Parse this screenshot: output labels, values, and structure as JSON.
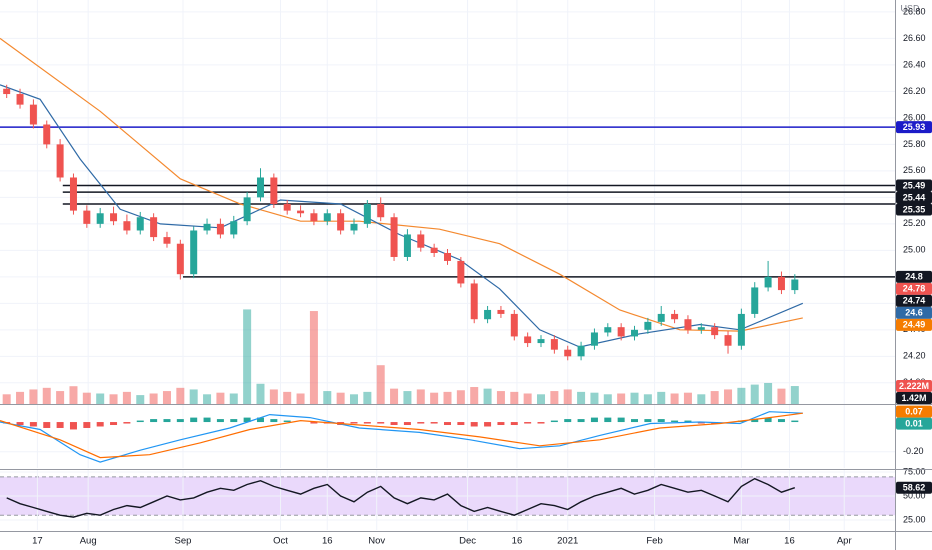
{
  "chart_data": [
    {
      "type": "candlestick",
      "currency": "USD",
      "grid": true,
      "xlim": [
        -0.5,
        66.5
      ],
      "xticks": [
        {
          "value": 2.3,
          "label": "17"
        },
        {
          "value": 6.1,
          "label": "Aug"
        },
        {
          "value": 13.2,
          "label": "Sep"
        },
        {
          "value": 20.5,
          "label": "Oct"
        },
        {
          "value": 24,
          "label": "16"
        },
        {
          "value": 27.7,
          "label": "Nov"
        },
        {
          "value": 34.5,
          "label": "Dec"
        },
        {
          "value": 38.2,
          "label": "16"
        },
        {
          "value": 42,
          "label": "2021"
        },
        {
          "value": 48.5,
          "label": "Feb"
        },
        {
          "value": 55,
          "label": "Mar"
        },
        {
          "value": 58.6,
          "label": "16"
        },
        {
          "value": 62.7,
          "label": "Apr"
        }
      ],
      "ylim": [
        23.84,
        26.89
      ],
      "yticks": [
        {
          "value": 26.8,
          "label": "26.80"
        },
        {
          "value": 26.6,
          "label": "26.60"
        },
        {
          "value": 26.4,
          "label": "26.40"
        },
        {
          "value": 26.2,
          "label": "26.20"
        },
        {
          "value": 26.0,
          "label": "26.00"
        },
        {
          "value": 25.8,
          "label": "25.80"
        },
        {
          "value": 25.6,
          "label": "25.60"
        },
        {
          "value": 25.4,
          "label": "25.40"
        },
        {
          "value": 25.2,
          "label": "25.20"
        },
        {
          "value": 25.0,
          "label": "25.00"
        },
        {
          "value": 24.8,
          "label": "24.80"
        },
        {
          "value": 24.6,
          "label": "24.60"
        },
        {
          "value": 24.4,
          "label": "24.40"
        },
        {
          "value": 24.2,
          "label": "24.20"
        },
        {
          "value": 24.0,
          "label": "24.00"
        }
      ],
      "up_color": "#26a69a",
      "down_color": "#ef5350",
      "open": [
        26.22,
        26.18,
        26.1,
        25.95,
        25.8,
        25.55,
        25.3,
        25.2,
        25.28,
        25.22,
        25.15,
        25.25,
        25.1,
        25.05,
        24.82,
        25.15,
        25.2,
        25.12,
        25.22,
        25.4,
        25.55,
        25.35,
        25.3,
        25.28,
        25.22,
        25.28,
        25.15,
        25.2,
        25.35,
        25.25,
        24.95,
        25.12,
        25.02,
        24.98,
        24.92,
        24.75,
        24.48,
        24.55,
        24.52,
        24.35,
        24.3,
        24.33,
        24.25,
        24.2,
        24.28,
        24.38,
        24.42,
        24.35,
        24.4,
        24.46,
        24.52,
        24.48,
        24.4,
        24.42,
        24.36,
        24.28,
        24.52,
        24.72,
        24.8,
        24.7
      ],
      "high": [
        26.25,
        26.22,
        26.14,
        25.98,
        25.84,
        25.58,
        25.34,
        25.32,
        25.33,
        25.27,
        25.29,
        25.28,
        25.14,
        25.08,
        25.18,
        25.24,
        25.24,
        25.26,
        25.44,
        25.62,
        25.58,
        25.38,
        25.34,
        25.31,
        25.31,
        25.31,
        25.24,
        25.38,
        25.4,
        25.28,
        25.16,
        25.15,
        25.05,
        25.01,
        24.95,
        24.78,
        24.58,
        24.58,
        24.55,
        24.38,
        24.36,
        24.36,
        24.28,
        24.31,
        24.41,
        24.45,
        24.45,
        24.43,
        24.49,
        24.58,
        24.55,
        24.51,
        24.45,
        24.45,
        24.39,
        24.56,
        24.76,
        24.92,
        24.84,
        24.82
      ],
      "low": [
        26.15,
        26.07,
        25.92,
        25.77,
        25.52,
        25.27,
        25.17,
        25.17,
        25.19,
        25.12,
        25.12,
        25.07,
        25.02,
        24.78,
        24.79,
        25.12,
        25.09,
        25.09,
        25.19,
        25.37,
        25.32,
        25.27,
        25.25,
        25.19,
        25.19,
        25.12,
        25.12,
        25.17,
        25.22,
        24.92,
        24.92,
        24.99,
        24.95,
        24.89,
        24.72,
        24.45,
        24.45,
        24.49,
        24.32,
        24.27,
        24.27,
        24.22,
        24.17,
        24.17,
        24.25,
        24.35,
        24.32,
        24.32,
        24.37,
        24.43,
        24.45,
        24.37,
        24.37,
        24.33,
        24.22,
        24.25,
        24.49,
        24.69,
        24.67,
        24.67
      ],
      "close": [
        26.18,
        26.1,
        25.95,
        25.8,
        25.55,
        25.3,
        25.2,
        25.28,
        25.22,
        25.15,
        25.25,
        25.1,
        25.05,
        24.82,
        25.15,
        25.2,
        25.12,
        25.22,
        25.4,
        25.55,
        25.35,
        25.3,
        25.28,
        25.22,
        25.28,
        25.15,
        25.2,
        25.35,
        25.25,
        24.95,
        25.12,
        25.02,
        24.98,
        24.92,
        24.75,
        24.48,
        24.55,
        24.52,
        24.35,
        24.3,
        24.33,
        24.25,
        24.2,
        24.28,
        24.38,
        24.42,
        24.35,
        24.4,
        24.46,
        24.52,
        24.48,
        24.4,
        24.42,
        24.36,
        24.28,
        24.52,
        24.72,
        24.8,
        24.7,
        24.78
      ],
      "volume": {
        "ylim": [
          0,
          12
        ],
        "values": [
          1.2,
          1.5,
          1.8,
          2.0,
          1.6,
          2.2,
          1.4,
          1.3,
          1.2,
          1.5,
          1.1,
          1.3,
          1.6,
          2.0,
          1.8,
          1.2,
          1.4,
          1.3,
          11.7,
          2.5,
          1.8,
          1.5,
          1.3,
          11.5,
          1.6,
          1.4,
          1.2,
          1.5,
          4.8,
          1.9,
          1.6,
          1.8,
          1.4,
          1.5,
          1.7,
          2.1,
          1.9,
          1.6,
          1.5,
          1.3,
          1.2,
          1.6,
          1.8,
          1.5,
          1.4,
          1.2,
          1.3,
          1.4,
          1.2,
          1.5,
          1.3,
          1.4,
          1.2,
          1.6,
          1.8,
          2.0,
          2.4,
          2.6,
          1.9,
          2.222
        ]
      },
      "moving_averages": [
        {
          "color": "#f4892f",
          "x": [
            -0.5,
            7,
            13,
            17.5,
            22,
            26.4,
            32.4,
            36.9,
            41.4,
            45.9,
            50.4,
            54.9,
            59.6
          ],
          "values": [
            26.6,
            26.05,
            25.54,
            25.35,
            25.22,
            25.22,
            25.16,
            25.05,
            24.82,
            24.55,
            24.4,
            24.39,
            24.49
          ]
        },
        {
          "color": "#2f6aa6",
          "x": [
            -0.5,
            2.5,
            5.5,
            8.5,
            11.5,
            16,
            20.5,
            25,
            29.4,
            33.9,
            36.9,
            39.9,
            42.9,
            47.4,
            51.9,
            54.9,
            59.6
          ],
          "values": [
            26.25,
            26.14,
            25.69,
            25.31,
            25.2,
            25.17,
            25.38,
            25.35,
            25.12,
            24.93,
            24.71,
            24.4,
            24.27,
            24.37,
            24.44,
            24.4,
            24.6
          ]
        }
      ],
      "levels": [
        {
          "value": 25.93,
          "color": "#1c1cc8",
          "start": -0.5
        },
        {
          "value": 25.49,
          "color": "#131722",
          "start": 4.2
        },
        {
          "value": 25.44,
          "color": "#131722",
          "start": 4.2
        },
        {
          "value": 25.35,
          "color": "#131722",
          "start": 4.2
        },
        {
          "value": 24.8,
          "color": "#131722",
          "start": 13.2
        }
      ],
      "tags": [
        {
          "value": 25.93,
          "color": "#1c1cc8"
        },
        {
          "value": 25.49,
          "color": "#131722"
        },
        {
          "value": 25.44,
          "color": "#131722"
        },
        {
          "value": 25.35,
          "color": "#131722"
        },
        {
          "value": 24.8,
          "color": "#131722"
        },
        {
          "value": 24.78,
          "color": "#ef5350"
        },
        {
          "value": 24.74,
          "color": "#131722"
        },
        {
          "value": 24.6,
          "color": "#2f6aa6"
        },
        {
          "value": 24.49,
          "color": "#f57c00"
        },
        {
          "value": 2.222,
          "label": "2.222M",
          "color": "#ef5350",
          "scale": "volume"
        },
        {
          "value": 1.42,
          "label": "1.42M",
          "color": "#131722",
          "scale": "volume"
        }
      ]
    },
    {
      "type": "macd",
      "ylim": [
        -0.31,
        0.115
      ],
      "yticks": [
        {
          "value": -0.2,
          "label": "-0.20"
        }
      ],
      "histogram": [
        -0.01,
        -0.02,
        -0.03,
        -0.04,
        -0.04,
        -0.05,
        -0.04,
        -0.03,
        -0.02,
        -0.01,
        0.01,
        0.02,
        0.02,
        0.02,
        0.03,
        0.03,
        0.02,
        0.02,
        0.03,
        0.03,
        0.02,
        0.01,
        0.0,
        -0.01,
        -0.01,
        -0.02,
        -0.01,
        -0.01,
        -0.01,
        -0.02,
        -0.02,
        -0.01,
        -0.01,
        -0.02,
        -0.02,
        -0.03,
        -0.03,
        -0.02,
        -0.02,
        -0.01,
        -0.01,
        0.01,
        0.02,
        0.02,
        0.03,
        0.03,
        0.03,
        0.02,
        0.02,
        0.02,
        0.01,
        0.01,
        -0.01,
        -0.01,
        0.0,
        0.01,
        0.02,
        0.03,
        0.02,
        0.01
      ],
      "up_color": "#26a69a",
      "down_color": "#ef5350",
      "lines": [
        {
          "color": "#2196f3",
          "x": [
            -0.5,
            2.5,
            5.5,
            7,
            10,
            13,
            16.7,
            19.7,
            22.7,
            26.4,
            30.9,
            34.7,
            38.4,
            41.4,
            44.4,
            48.2,
            51.9,
            54.9,
            57.1,
            59.6
          ],
          "values": [
            0,
            -0.05,
            -0.22,
            -0.27,
            -0.19,
            -0.12,
            -0.04,
            0.05,
            0.03,
            -0.04,
            -0.07,
            -0.12,
            -0.18,
            -0.16,
            -0.09,
            -0.01,
            0,
            -0.01,
            0.07,
            0.06
          ]
        },
        {
          "color": "#ff6d00",
          "x": [
            -0.5,
            4,
            7,
            10.7,
            14.5,
            18.2,
            22,
            26.4,
            30.9,
            35.4,
            39.9,
            44.4,
            48.9,
            53.4,
            57.1,
            59.6
          ],
          "values": [
            0.01,
            -0.12,
            -0.24,
            -0.22,
            -0.14,
            -0.05,
            0.01,
            -0.02,
            -0.05,
            -0.1,
            -0.16,
            -0.12,
            -0.04,
            -0.01,
            0.03,
            0.06
          ]
        }
      ],
      "tags": [
        {
          "value": 0.07,
          "color": "#f57c00"
        },
        {
          "value": 0.01,
          "color": "#26a69a"
        }
      ]
    },
    {
      "type": "line",
      "ylim": [
        14.6,
        77.1
      ],
      "yticks": [
        {
          "value": 75,
          "label": "75.00"
        },
        {
          "value": 50,
          "label": "50.00"
        },
        {
          "value": 25,
          "label": "25.00"
        }
      ],
      "band": [
        30,
        70
      ],
      "band_color": "#ead9fb",
      "color": "#131722",
      "values": [
        48,
        42,
        38,
        34,
        30,
        28,
        32,
        30,
        36,
        40,
        38,
        44,
        50,
        46,
        48,
        54,
        58,
        56,
        62,
        66,
        60,
        56,
        52,
        58,
        62,
        50,
        44,
        54,
        60,
        48,
        42,
        48,
        46,
        52,
        40,
        34,
        38,
        34,
        30,
        36,
        42,
        40,
        36,
        44,
        50,
        54,
        58,
        52,
        56,
        62,
        58,
        54,
        56,
        50,
        44,
        60,
        68,
        62,
        54,
        58.62
      ],
      "tags": [
        {
          "value": 58.62,
          "color": "#131722"
        }
      ]
    }
  ]
}
